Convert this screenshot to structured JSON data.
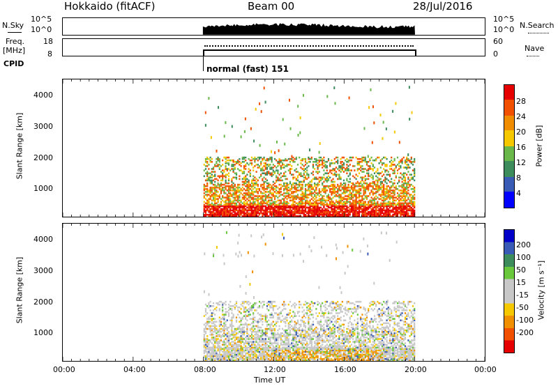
{
  "header": {
    "station": "Hokkaido (fitACF)",
    "beam": "Beam 00",
    "date": "28/Jul/2016"
  },
  "noise_panel": {
    "left_label": "N.Sky",
    "right_label": "N.Search",
    "left_ticks": [
      "10^5",
      "10^0"
    ],
    "right_ticks": [
      "10^5",
      "10^0"
    ]
  },
  "freq_panel": {
    "left_label_1": "Freq.",
    "left_label_2": "[MHz]",
    "right_label": "Nave",
    "left_ticks": [
      "18",
      "8"
    ],
    "right_ticks": [
      "60",
      "0"
    ]
  },
  "cpid": {
    "label": "CPID",
    "mode": "normal (fast) 151"
  },
  "power_panel": {
    "ylabel": "Slant Range [km]",
    "yticks": [
      "4000",
      "3000",
      "2000",
      "1000"
    ],
    "colorbar_label": "Power [dB]",
    "colorbar_ticks": [
      "28",
      "24",
      "20",
      "16",
      "12",
      "8",
      "4"
    ]
  },
  "velocity_panel": {
    "ylabel": "Slant Range [km]",
    "yticks": [
      "4000",
      "3000",
      "2000",
      "1000"
    ],
    "colorbar_label": "Velocity [m s⁻¹]",
    "colorbar_ticks": [
      "200",
      "100",
      "50",
      "15",
      "-15",
      "-50",
      "-100",
      "-200"
    ]
  },
  "xaxis": {
    "label": "Time UT",
    "ticks": [
      "00:00",
      "04:00",
      "08:00",
      "12:00",
      "16:00",
      "20:00",
      "00:00"
    ]
  },
  "chart_data": [
    {
      "type": "heatmap",
      "name": "power",
      "x_range_hours": [
        0,
        24
      ],
      "data_extent_hours": [
        8,
        20
      ],
      "y_range_km": [
        180,
        4500
      ],
      "colorbar_range_db": [
        0,
        32
      ],
      "colorbar_colors": [
        "#0000ff",
        "#3a5bb5",
        "#3c8c5c",
        "#6ab84a",
        "#f5c800",
        "#f08c00",
        "#f05000",
        "#e60000"
      ],
      "dominant_echo_range_km": [
        180,
        2000
      ]
    },
    {
      "type": "heatmap",
      "name": "velocity",
      "x_range_hours": [
        0,
        24
      ],
      "data_extent_hours": [
        8,
        20
      ],
      "y_range_km": [
        180,
        4500
      ],
      "colorbar_range_ms": [
        -250,
        250
      ],
      "colorbar_colors": [
        "#e60000",
        "#f05000",
        "#f09000",
        "#f5c800",
        "#c8c8c8",
        "#c8c8c8",
        "#6ac83c",
        "#3c8c5c",
        "#3a5bb5",
        "#0000c8"
      ],
      "dominant_echo_range_km": [
        180,
        2000
      ]
    }
  ]
}
